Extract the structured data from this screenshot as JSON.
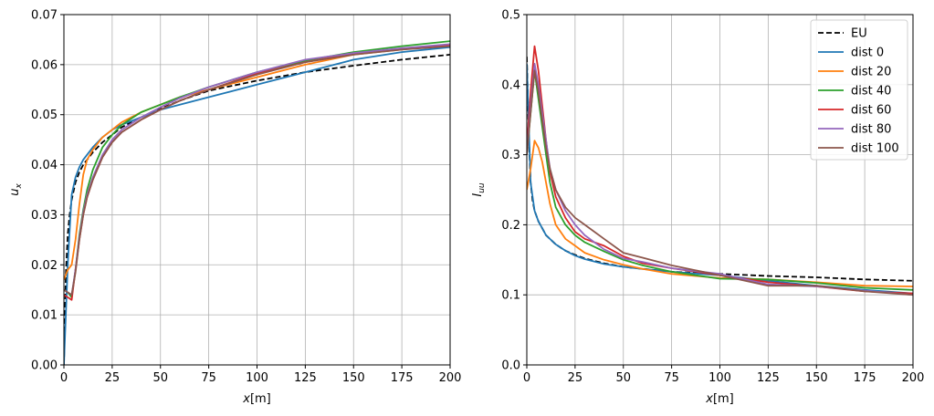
{
  "figure": {
    "series_styles": [
      {
        "name": "EU",
        "color": "#000000",
        "dashed": true
      },
      {
        "name": "dist 0",
        "color": "#1f77b4",
        "dashed": false
      },
      {
        "name": "dist 20",
        "color": "#ff7f0e",
        "dashed": false
      },
      {
        "name": "dist 40",
        "color": "#2ca02c",
        "dashed": false
      },
      {
        "name": "dist 60",
        "color": "#d62728",
        "dashed": false
      },
      {
        "name": "dist 80",
        "color": "#9467bd",
        "dashed": false
      },
      {
        "name": "dist 100",
        "color": "#8c564b",
        "dashed": false
      }
    ]
  },
  "chart_data": [
    {
      "type": "line",
      "title": "",
      "xlabel_main": "x",
      "xlabel_unit": "[m]",
      "ylabel_main": "u",
      "ylabel_sub": "x",
      "xlim": [
        0,
        200
      ],
      "ylim": [
        0,
        0.07
      ],
      "xticks": [
        0,
        25,
        50,
        75,
        100,
        125,
        150,
        175,
        200
      ],
      "yticks": [
        0.0,
        0.01,
        0.02,
        0.03,
        0.04,
        0.05,
        0.06,
        0.07
      ],
      "ytick_labels": [
        "0.00",
        "0.01",
        "0.02",
        "0.03",
        "0.04",
        "0.05",
        "0.06",
        "0.07"
      ],
      "xtick_labels": [
        "0",
        "25",
        "50",
        "75",
        "100",
        "125",
        "150",
        "175",
        "200"
      ],
      "grid": true,
      "legend": false,
      "series": [
        {
          "name": "EU",
          "x": [
            0,
            1,
            2,
            3,
            4,
            6,
            8,
            10,
            15,
            20,
            25,
            30,
            40,
            50,
            60,
            75,
            100,
            125,
            150,
            175,
            200
          ],
          "y": [
            0.0,
            0.018,
            0.026,
            0.03,
            0.033,
            0.0365,
            0.0385,
            0.04,
            0.0425,
            0.0445,
            0.046,
            0.0475,
            0.0495,
            0.0512,
            0.0528,
            0.0548,
            0.0568,
            0.0585,
            0.0598,
            0.061,
            0.062
          ]
        },
        {
          "name": "dist 0",
          "x": [
            0,
            2,
            4,
            6,
            8,
            10,
            15,
            20,
            25,
            30,
            40,
            50,
            60,
            75,
            100,
            125,
            150,
            175,
            200
          ],
          "y": [
            0.0,
            0.02,
            0.034,
            0.0375,
            0.0395,
            0.041,
            0.0435,
            0.0455,
            0.047,
            0.048,
            0.0495,
            0.051,
            0.052,
            0.0535,
            0.056,
            0.0585,
            0.061,
            0.0625,
            0.0635
          ]
        },
        {
          "name": "dist 20",
          "x": [
            0,
            2,
            4,
            6,
            8,
            10,
            12,
            15,
            20,
            25,
            30,
            40,
            50,
            60,
            75,
            100,
            125,
            150,
            175,
            200
          ],
          "y": [
            0.017,
            0.019,
            0.02,
            0.025,
            0.032,
            0.038,
            0.041,
            0.043,
            0.0455,
            0.047,
            0.0485,
            0.0505,
            0.052,
            0.0535,
            0.055,
            0.0575,
            0.06,
            0.062,
            0.063,
            0.064
          ]
        },
        {
          "name": "dist 40",
          "x": [
            0,
            2,
            4,
            6,
            8,
            10,
            12,
            15,
            20,
            25,
            30,
            40,
            50,
            60,
            75,
            100,
            125,
            150,
            175,
            200
          ],
          "y": [
            0.015,
            0.0145,
            0.0135,
            0.019,
            0.026,
            0.031,
            0.035,
            0.039,
            0.0435,
            0.046,
            0.048,
            0.0505,
            0.052,
            0.0535,
            0.0555,
            0.0585,
            0.0608,
            0.0625,
            0.0637,
            0.0647
          ]
        },
        {
          "name": "dist 60",
          "x": [
            0,
            2,
            4,
            6,
            8,
            10,
            12,
            15,
            20,
            25,
            30,
            40,
            50,
            60,
            75,
            100,
            125,
            150,
            175,
            200
          ],
          "y": [
            0.014,
            0.0135,
            0.013,
            0.019,
            0.025,
            0.03,
            0.0335,
            0.037,
            0.0415,
            0.0445,
            0.0465,
            0.049,
            0.051,
            0.0528,
            0.055,
            0.0582,
            0.0605,
            0.0622,
            0.0632,
            0.064
          ]
        },
        {
          "name": "dist 80",
          "x": [
            0,
            2,
            4,
            6,
            8,
            10,
            12,
            15,
            20,
            25,
            30,
            40,
            50,
            60,
            75,
            100,
            125,
            150,
            175,
            200
          ],
          "y": [
            0.015,
            0.0145,
            0.014,
            0.019,
            0.0255,
            0.0305,
            0.034,
            0.0375,
            0.042,
            0.045,
            0.047,
            0.0495,
            0.0515,
            0.0533,
            0.0555,
            0.0585,
            0.061,
            0.0623,
            0.0633,
            0.0641
          ]
        },
        {
          "name": "dist 100",
          "x": [
            0,
            2,
            4,
            6,
            8,
            10,
            12,
            15,
            20,
            25,
            30,
            40,
            50,
            60,
            75,
            100,
            125,
            150,
            175,
            200
          ],
          "y": [
            0.015,
            0.0145,
            0.014,
            0.0185,
            0.025,
            0.03,
            0.0335,
            0.037,
            0.0415,
            0.0445,
            0.0465,
            0.049,
            0.051,
            0.0528,
            0.055,
            0.058,
            0.0605,
            0.062,
            0.063,
            0.0637
          ]
        }
      ]
    },
    {
      "type": "line",
      "title": "",
      "xlabel_main": "x",
      "xlabel_unit": "[m]",
      "ylabel_main": "I",
      "ylabel_sub": "uu",
      "xlim": [
        0,
        200
      ],
      "ylim": [
        0,
        0.5
      ],
      "xticks": [
        0,
        25,
        50,
        75,
        100,
        125,
        150,
        175,
        200
      ],
      "yticks": [
        0.0,
        0.1,
        0.2,
        0.3,
        0.4,
        0.5
      ],
      "ytick_labels": [
        "0.0",
        "0.1",
        "0.2",
        "0.3",
        "0.4",
        "0.5"
      ],
      "xtick_labels": [
        "0",
        "25",
        "50",
        "75",
        "100",
        "125",
        "150",
        "175",
        "200"
      ],
      "grid": true,
      "legend": true,
      "legend_position": "top-right",
      "series": [
        {
          "name": "EU",
          "x": [
            0,
            1,
            2,
            3,
            4,
            6,
            8,
            10,
            15,
            20,
            25,
            30,
            40,
            50,
            75,
            100,
            125,
            150,
            175,
            200
          ],
          "y": [
            0.44,
            0.33,
            0.26,
            0.235,
            0.22,
            0.205,
            0.195,
            0.185,
            0.172,
            0.163,
            0.157,
            0.152,
            0.145,
            0.14,
            0.133,
            0.13,
            0.127,
            0.125,
            0.122,
            0.12
          ]
        },
        {
          "name": "dist 0",
          "x": [
            0,
            2,
            4,
            6,
            8,
            10,
            15,
            20,
            25,
            30,
            40,
            50,
            60,
            75,
            100,
            125,
            150,
            175,
            200
          ],
          "y": [
            0.43,
            0.26,
            0.22,
            0.205,
            0.195,
            0.185,
            0.172,
            0.163,
            0.156,
            0.151,
            0.144,
            0.14,
            0.137,
            0.133,
            0.128,
            0.12,
            0.113,
            0.107,
            0.102
          ]
        },
        {
          "name": "dist 20",
          "x": [
            0,
            2,
            4,
            6,
            8,
            10,
            12,
            15,
            20,
            25,
            30,
            40,
            50,
            60,
            75,
            100,
            125,
            150,
            175,
            200
          ],
          "y": [
            0.25,
            0.28,
            0.32,
            0.31,
            0.29,
            0.26,
            0.23,
            0.2,
            0.18,
            0.17,
            0.16,
            0.15,
            0.143,
            0.137,
            0.13,
            0.124,
            0.122,
            0.118,
            0.113,
            0.112
          ]
        },
        {
          "name": "dist 40",
          "x": [
            0,
            2,
            4,
            6,
            8,
            10,
            12,
            15,
            20,
            25,
            30,
            40,
            50,
            60,
            75,
            100,
            125,
            150,
            175,
            200
          ],
          "y": [
            0.3,
            0.36,
            0.42,
            0.38,
            0.34,
            0.3,
            0.26,
            0.225,
            0.2,
            0.185,
            0.175,
            0.162,
            0.15,
            0.142,
            0.133,
            0.123,
            0.122,
            0.117,
            0.11,
            0.107
          ]
        },
        {
          "name": "dist 60",
          "x": [
            0,
            2,
            4,
            6,
            8,
            10,
            12,
            15,
            20,
            25,
            30,
            40,
            50,
            60,
            75,
            100,
            125,
            150,
            175,
            200
          ],
          "y": [
            0.31,
            0.39,
            0.455,
            0.42,
            0.37,
            0.32,
            0.275,
            0.24,
            0.21,
            0.19,
            0.18,
            0.17,
            0.155,
            0.145,
            0.138,
            0.128,
            0.118,
            0.112,
            0.105,
            0.102
          ]
        },
        {
          "name": "dist 80",
          "x": [
            0,
            2,
            4,
            6,
            8,
            10,
            12,
            15,
            20,
            25,
            30,
            40,
            50,
            60,
            75,
            100,
            125,
            150,
            175,
            200
          ],
          "y": [
            0.3,
            0.37,
            0.43,
            0.4,
            0.36,
            0.32,
            0.28,
            0.25,
            0.22,
            0.2,
            0.185,
            0.165,
            0.152,
            0.147,
            0.138,
            0.13,
            0.115,
            0.112,
            0.106,
            0.1
          ]
        },
        {
          "name": "dist 100",
          "x": [
            0,
            2,
            4,
            6,
            8,
            10,
            12,
            15,
            20,
            25,
            30,
            40,
            50,
            60,
            75,
            100,
            125,
            150,
            175,
            200
          ],
          "y": [
            0.3,
            0.36,
            0.42,
            0.39,
            0.35,
            0.31,
            0.28,
            0.25,
            0.225,
            0.21,
            0.2,
            0.18,
            0.16,
            0.153,
            0.142,
            0.128,
            0.113,
            0.113,
            0.105,
            0.1
          ]
        }
      ]
    }
  ]
}
